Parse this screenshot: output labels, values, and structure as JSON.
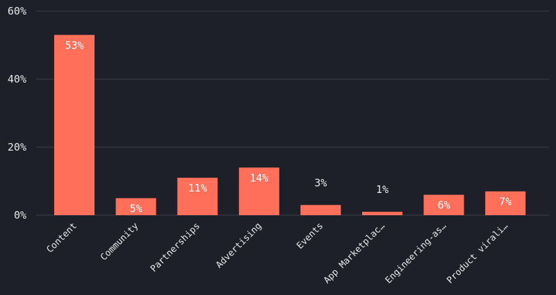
{
  "chart_data": {
    "type": "bar",
    "categories": [
      "Content",
      "Community",
      "Partnerships",
      "Advertising",
      "Events",
      "App Marketplac…",
      "Engineering-as…",
      "Product virali…"
    ],
    "values": [
      53,
      5,
      11,
      14,
      3,
      1,
      6,
      7
    ],
    "data_labels": [
      "53%",
      "5%",
      "11%",
      "14%",
      "3%",
      "1%",
      "6%",
      "7%"
    ],
    "title": "",
    "xlabel": "",
    "ylabel": "",
    "ylim": [
      0,
      60
    ],
    "yticks": [
      0,
      20,
      40,
      60
    ],
    "ytick_labels": [
      "0%",
      "20%",
      "40%",
      "60%"
    ],
    "grid": true,
    "legend": "none",
    "colors": {
      "background": "#1e2029",
      "bar": "#ff6f59",
      "grid": "#3b3e4a",
      "text": "#e6e6e6",
      "label_inside": "#ffffff"
    }
  }
}
